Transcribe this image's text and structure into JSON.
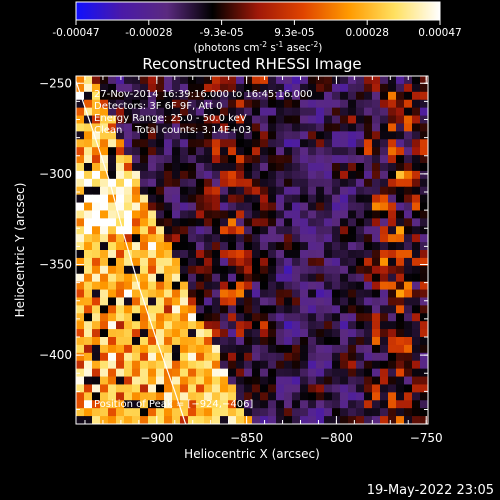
{
  "colors": {
    "background": "#000000",
    "foreground": "#ffffff",
    "colormap": [
      "#1010ff",
      "#4a1aa8",
      "#5b2a80",
      "#000000",
      "#a01808",
      "#e04400",
      "#ff9a00",
      "#ffe060",
      "#ffffff"
    ]
  },
  "colorbar": {
    "tick_labels": [
      "-0.00047",
      "-0.00028",
      "-9.3e-05",
      "9.3e-05",
      "0.00028",
      "0.00047"
    ],
    "unit_prefix": "(photons cm",
    "unit_sup1": "-2",
    "unit_mid": " s",
    "unit_sup2": "-1",
    "unit_mid2": " asec",
    "unit_sup3": "-2",
    "unit_suffix": ")"
  },
  "chart_data": {
    "type": "heatmap",
    "title": "Reconstructed RHESSI Image",
    "xlabel": "Heliocentric X (arcsec)",
    "ylabel": "Heliocentric Y (arcsec)",
    "xlim": [
      -945,
      -749
    ],
    "ylim": [
      -438,
      -246
    ],
    "x_ticks": [
      -900,
      -850,
      -800,
      -750
    ],
    "x_tick_labels": [
      "−900",
      "−850",
      "−800",
      "−750"
    ],
    "y_ticks": [
      -400,
      -350,
      -300,
      -250
    ],
    "y_tick_labels": [
      "−400",
      "−350",
      "−300",
      "−250"
    ],
    "value_range": [
      -0.00047,
      0.00047
    ],
    "limb_curve": [
      [
        -946,
        -246
      ],
      [
        -936,
        -275
      ],
      [
        -926,
        -305
      ],
      [
        -918,
        -335
      ],
      [
        -910,
        -362
      ],
      [
        -900,
        -392
      ],
      [
        -890,
        -420
      ],
      [
        -884,
        -438
      ]
    ],
    "annotations": [
      "27-Nov-2014 16:39:16.000 to 16:45:16.000",
      "Detectors: 3F 6F 9F, Att 0",
      "Energy Range: 25.0 - 50.0 keV",
      "Clean    Total counts: 3.14E+03"
    ],
    "peak_label": "Position of Peak = [−924,−406]"
  },
  "footer": {
    "timestamp": "19-May-2022 23:05"
  }
}
